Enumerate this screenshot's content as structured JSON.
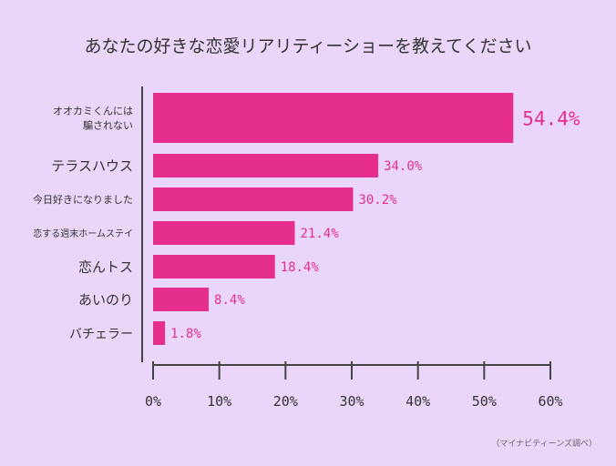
{
  "chart_data": {
    "type": "bar",
    "orientation": "horizontal",
    "title": "あなたの好きな恋愛リアリティーショーを教えてください",
    "categories": [
      "オオカミくんには\n騙されない",
      "テラスハウス",
      "今日好きになりました",
      "恋する週末ホームステイ",
      "恋んトス",
      "あいのり",
      "バチェラー"
    ],
    "values": [
      54.4,
      34.0,
      30.2,
      21.4,
      18.4,
      8.4,
      1.8
    ],
    "value_labels": [
      "54.4%",
      "34.0%",
      "30.2%",
      "21.4%",
      "18.4%",
      "8.4%",
      "1.8%"
    ],
    "xlim": [
      0,
      60
    ],
    "xticks": [
      "0%",
      "10%",
      "20%",
      "30%",
      "40%",
      "50%",
      "60%"
    ],
    "grid": false,
    "source": "（マイナビティーンズ調べ）",
    "colors": {
      "bar": "#e62e8c",
      "background": "#e9d6f9",
      "text": "#333333",
      "axis": "#444444"
    }
  }
}
